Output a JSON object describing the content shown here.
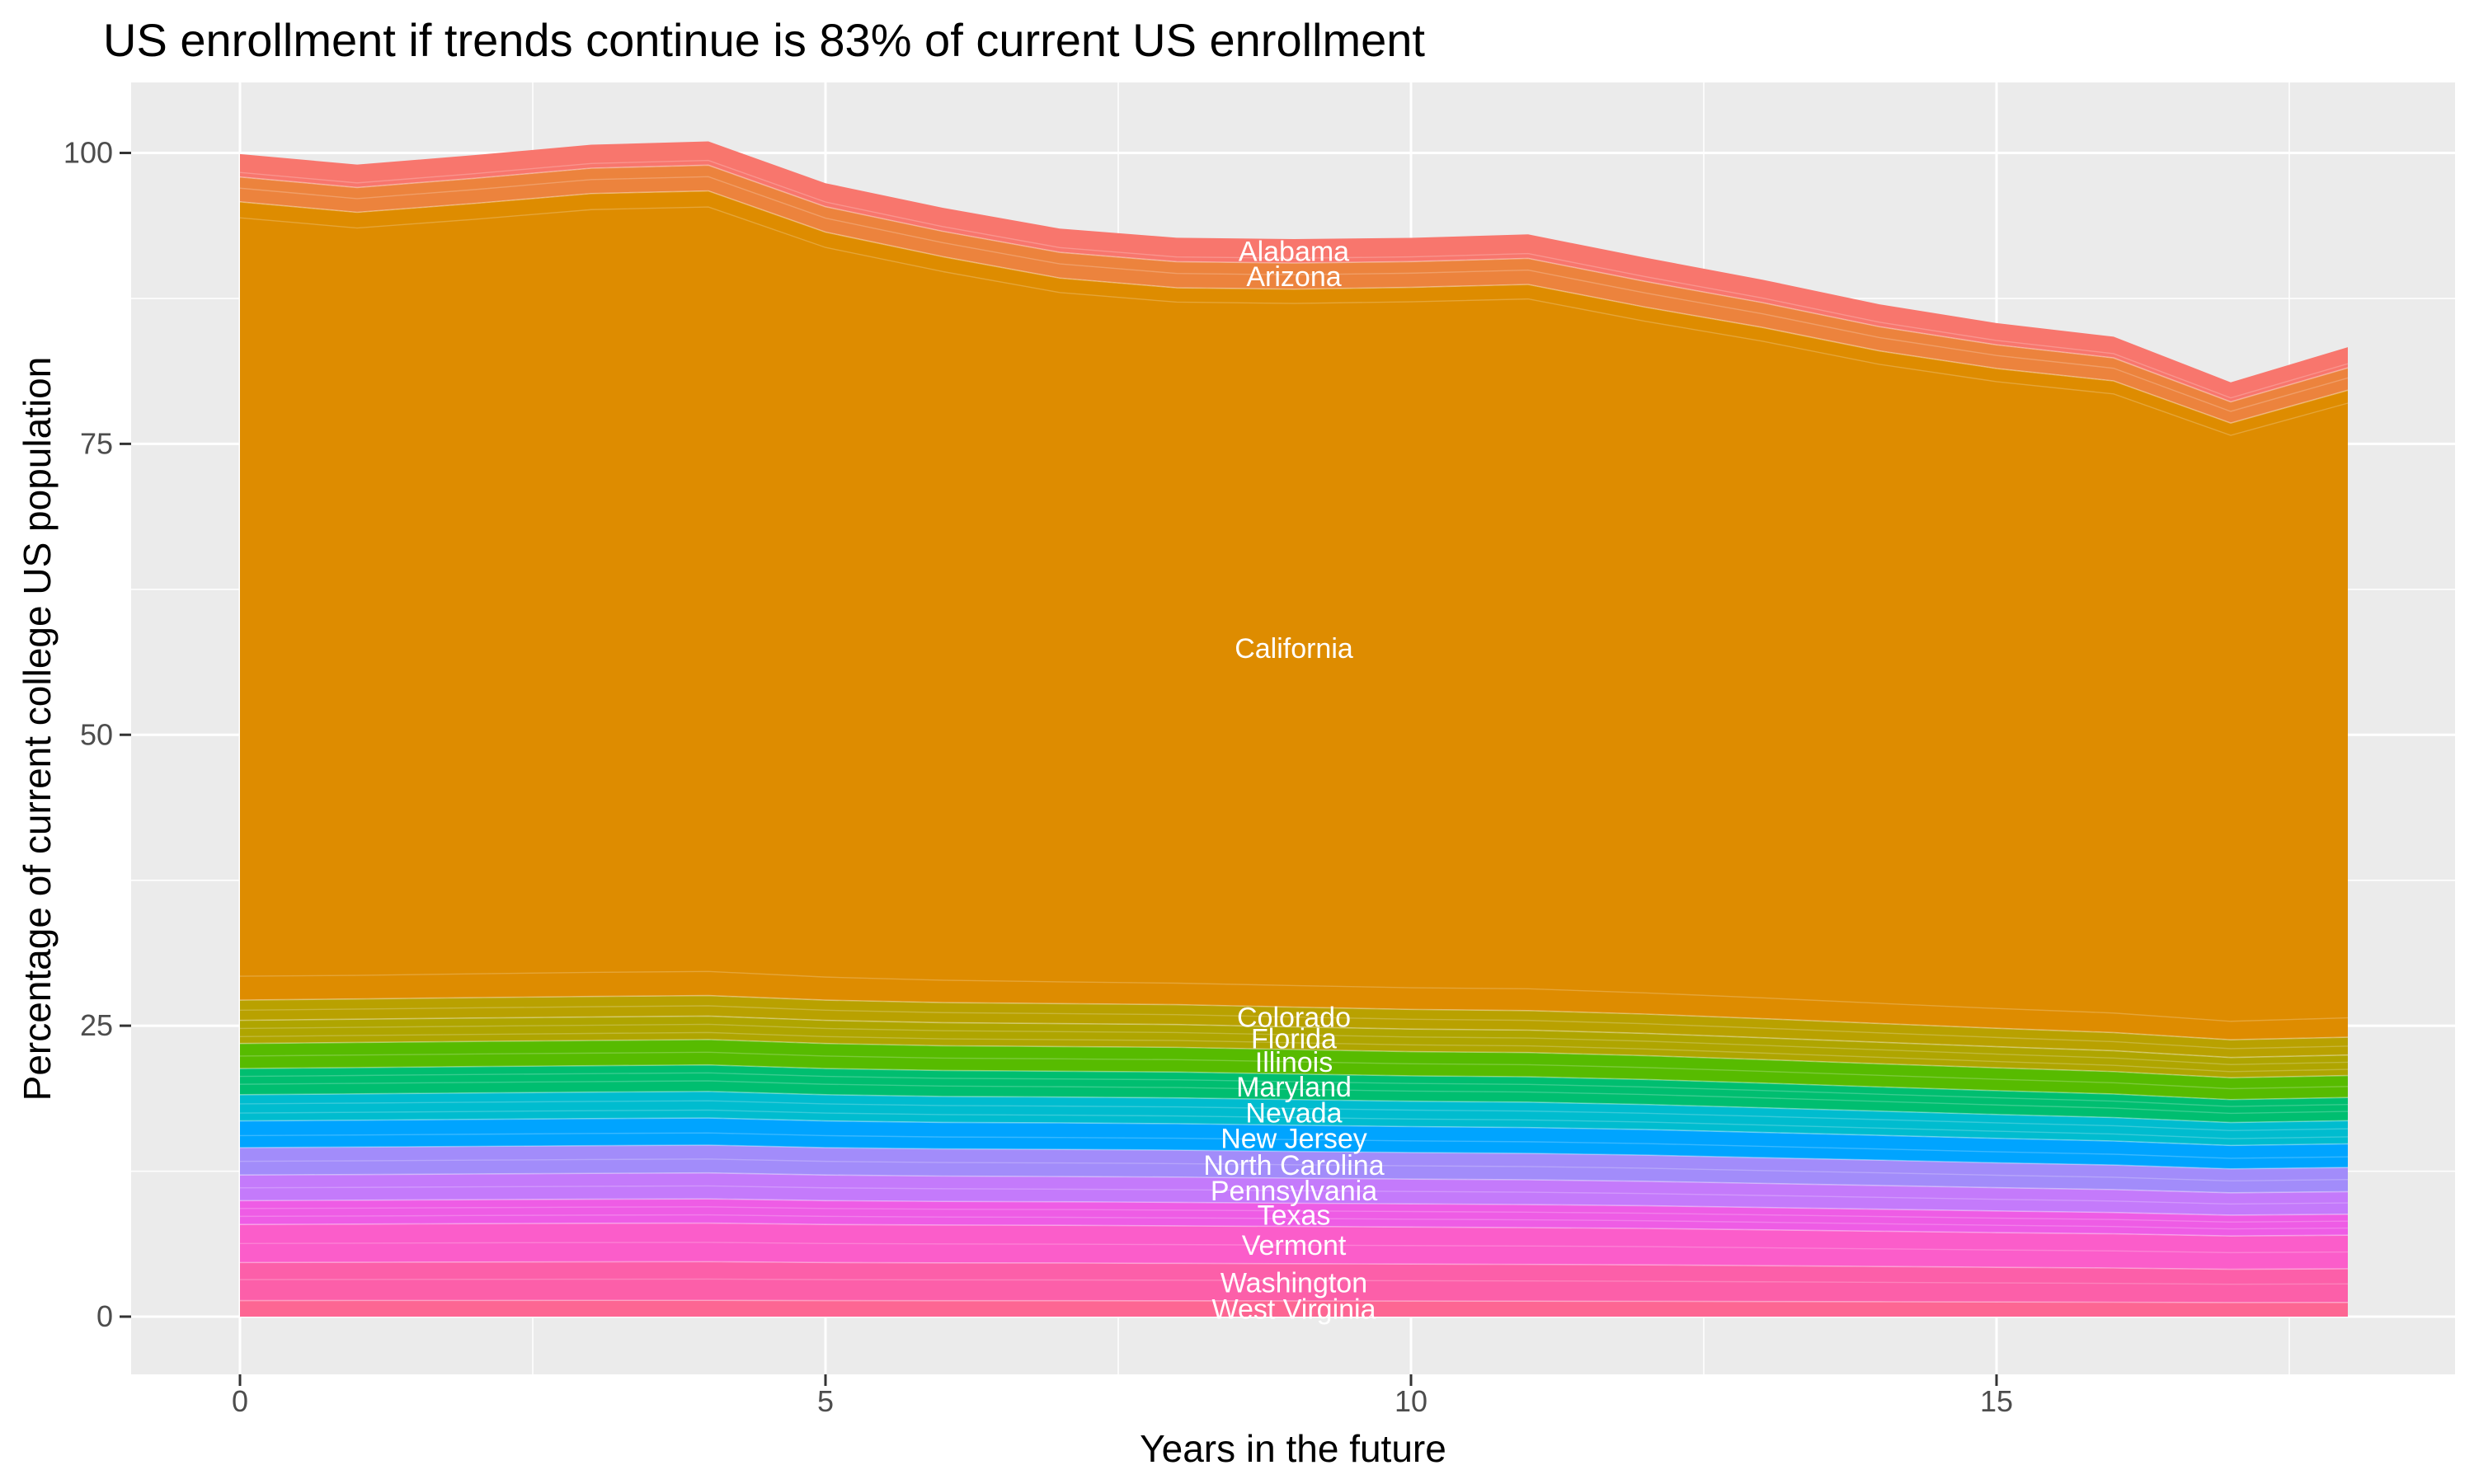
{
  "chart_data": {
    "type": "area",
    "stacked": true,
    "title": "US enrollment if trends continue is 83% of current US enrollment",
    "xlabel": "Years in the future",
    "ylabel": "Percentage of current college US population",
    "x": [
      0,
      1,
      2,
      3,
      4,
      5,
      6,
      7,
      8,
      9,
      10,
      11,
      12,
      13,
      14,
      15,
      16,
      17,
      18
    ],
    "xlim": [
      0,
      18
    ],
    "ylim": [
      0,
      100
    ],
    "xticks": [
      0,
      5,
      10,
      15
    ],
    "yticks": [
      0,
      25,
      50,
      75,
      100
    ],
    "xtick_labels": [
      "0",
      "5",
      "10",
      "15"
    ],
    "ytick_labels": [
      "0",
      "25",
      "50",
      "75",
      "100"
    ],
    "grid": "on",
    "legend": "none",
    "label_x": 9,
    "series": [
      {
        "name": "Alabama",
        "color": "#F8766D",
        "values": [
          1.97,
          1.97,
          1.99,
          2.02,
          2.04,
          2.02,
          2.02,
          2.04,
          2.06,
          2.06,
          2.04,
          2.06,
          2.04,
          1.97,
          1.92,
          1.87,
          1.82,
          1.68,
          1.78
        ]
      },
      {
        "name": "Arizona",
        "color": "#EC833D",
        "values": [
          2.13,
          2.13,
          2.16,
          2.18,
          2.21,
          2.18,
          2.18,
          2.21,
          2.24,
          2.24,
          2.21,
          2.24,
          2.21,
          2.13,
          2.08,
          2.03,
          1.98,
          1.82,
          1.92
        ]
      },
      {
        "name": "California",
        "color": "#DE8C00",
        "values": [
          68.6,
          67.6,
          68.25,
          69.0,
          69.15,
          66.0,
          64.1,
          62.35,
          61.6,
          61.7,
          62.05,
          62.4,
          60.75,
          59.4,
          57.8,
          56.7,
          56.0,
          53.0,
          55.6
        ]
      },
      {
        "name": "Colorado",
        "color": "#B9A100",
        "values": [
          1.74,
          1.74,
          1.75,
          1.76,
          1.76,
          1.74,
          1.73,
          1.72,
          1.71,
          1.7,
          1.69,
          1.68,
          1.66,
          1.64,
          1.61,
          1.58,
          1.56,
          1.52,
          1.53
        ]
      },
      {
        "name": "Florida",
        "color": "#AFA500",
        "values": [
          1.99,
          2.0,
          2.01,
          2.02,
          2.02,
          1.99,
          1.98,
          1.97,
          1.96,
          1.95,
          1.94,
          1.93,
          1.91,
          1.88,
          1.85,
          1.82,
          1.79,
          1.74,
          1.76
        ]
      },
      {
        "name": "Illinois",
        "color": "#57BB00",
        "values": [
          2.15,
          2.16,
          2.16,
          2.17,
          2.18,
          2.15,
          2.13,
          2.12,
          2.12,
          2.1,
          2.08,
          2.08,
          2.05,
          2.02,
          1.99,
          1.96,
          1.93,
          1.88,
          1.89
        ]
      },
      {
        "name": "Maryland",
        "color": "#00BE70",
        "values": [
          2.25,
          2.26,
          2.27,
          2.27,
          2.28,
          2.25,
          2.23,
          2.22,
          2.22,
          2.2,
          2.18,
          2.18,
          2.15,
          2.12,
          2.08,
          2.05,
          2.02,
          1.97,
          1.99
        ]
      },
      {
        "name": "Nevada",
        "color": "#00BCCF",
        "values": [
          2.25,
          2.26,
          2.27,
          2.27,
          2.28,
          2.25,
          2.23,
          2.22,
          2.22,
          2.2,
          2.18,
          2.18,
          2.15,
          2.12,
          2.08,
          2.05,
          2.02,
          1.97,
          1.99
        ]
      },
      {
        "name": "New Jersey",
        "color": "#00A4FF",
        "values": [
          2.3,
          2.31,
          2.32,
          2.33,
          2.33,
          2.3,
          2.28,
          2.28,
          2.27,
          2.25,
          2.23,
          2.22,
          2.2,
          2.17,
          2.13,
          2.1,
          2.06,
          2.01,
          2.03
        ]
      },
      {
        "name": "North Carolina",
        "color": "#A28CFA",
        "values": [
          2.35,
          2.36,
          2.37,
          2.38,
          2.39,
          2.35,
          2.33,
          2.33,
          2.32,
          2.3,
          2.28,
          2.27,
          2.25,
          2.21,
          2.18,
          2.14,
          2.11,
          2.06,
          2.08
        ]
      },
      {
        "name": "Pennsylvania",
        "color": "#C47AFB",
        "values": [
          2.2,
          2.21,
          2.21,
          2.22,
          2.23,
          2.2,
          2.18,
          2.17,
          2.17,
          2.15,
          2.13,
          2.13,
          2.1,
          2.07,
          2.04,
          2.0,
          1.97,
          1.92,
          1.94
        ]
      },
      {
        "name": "Texas",
        "color": "#EE5CE5",
        "values": [
          2.05,
          2.05,
          2.06,
          2.07,
          2.08,
          2.05,
          2.03,
          2.02,
          2.02,
          2.0,
          1.99,
          1.98,
          1.95,
          1.92,
          1.89,
          1.86,
          1.83,
          1.79,
          1.8
        ]
      },
      {
        "name": "Vermont",
        "color": "#FB5DCA",
        "values": [
          3.27,
          3.28,
          3.3,
          3.31,
          3.32,
          3.27,
          3.25,
          3.24,
          3.22,
          3.2,
          3.18,
          3.16,
          3.13,
          3.08,
          3.03,
          2.98,
          2.94,
          2.86,
          2.89
        ]
      },
      {
        "name": "Washington",
        "color": "#FC5FA9",
        "values": [
          3.27,
          3.28,
          3.3,
          3.31,
          3.32,
          3.27,
          3.25,
          3.24,
          3.22,
          3.2,
          3.18,
          3.16,
          3.13,
          3.08,
          3.03,
          2.98,
          2.94,
          2.86,
          2.89
        ]
      },
      {
        "name": "West Virginia",
        "color": "#FD6693",
        "values": [
          1.38,
          1.39,
          1.39,
          1.4,
          1.4,
          1.38,
          1.37,
          1.37,
          1.36,
          1.35,
          1.34,
          1.33,
          1.32,
          1.3,
          1.28,
          1.26,
          1.24,
          1.21,
          1.22
        ]
      }
    ]
  },
  "style": {
    "panel_background": "#EBEBEB",
    "grid_color": "#FFFFFF",
    "tick_label_color": "#4D4D4D",
    "tick_mark_color": "#333333",
    "state_label_color": "#FFFFFF",
    "title_color": "#000000"
  }
}
